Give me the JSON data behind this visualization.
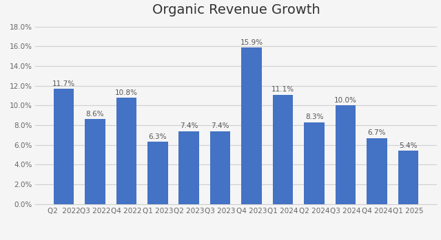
{
  "title": "Organic Revenue Growth",
  "categories": [
    "Q2  2022",
    "Q3 2022",
    "Q4 2022",
    "Q1 2023",
    "Q2 2023",
    "Q3 2023",
    "Q4 2023",
    "Q1 2024",
    "Q2 2024",
    "Q3 2024",
    "Q4 2024",
    "Q1 2025"
  ],
  "values": [
    11.7,
    8.6,
    10.8,
    6.3,
    7.4,
    7.4,
    15.9,
    11.1,
    8.3,
    10.0,
    6.7,
    5.4
  ],
  "bar_color": "#4472C4",
  "ylim": [
    0,
    18.5
  ],
  "yticks": [
    0,
    2,
    4,
    6,
    8,
    10,
    12,
    14,
    16,
    18
  ],
  "title_fontsize": 14,
  "label_fontsize": 7.5,
  "tick_fontsize": 7.5,
  "background_color": "#f5f5f5",
  "grid_color": "#d0d0d0"
}
